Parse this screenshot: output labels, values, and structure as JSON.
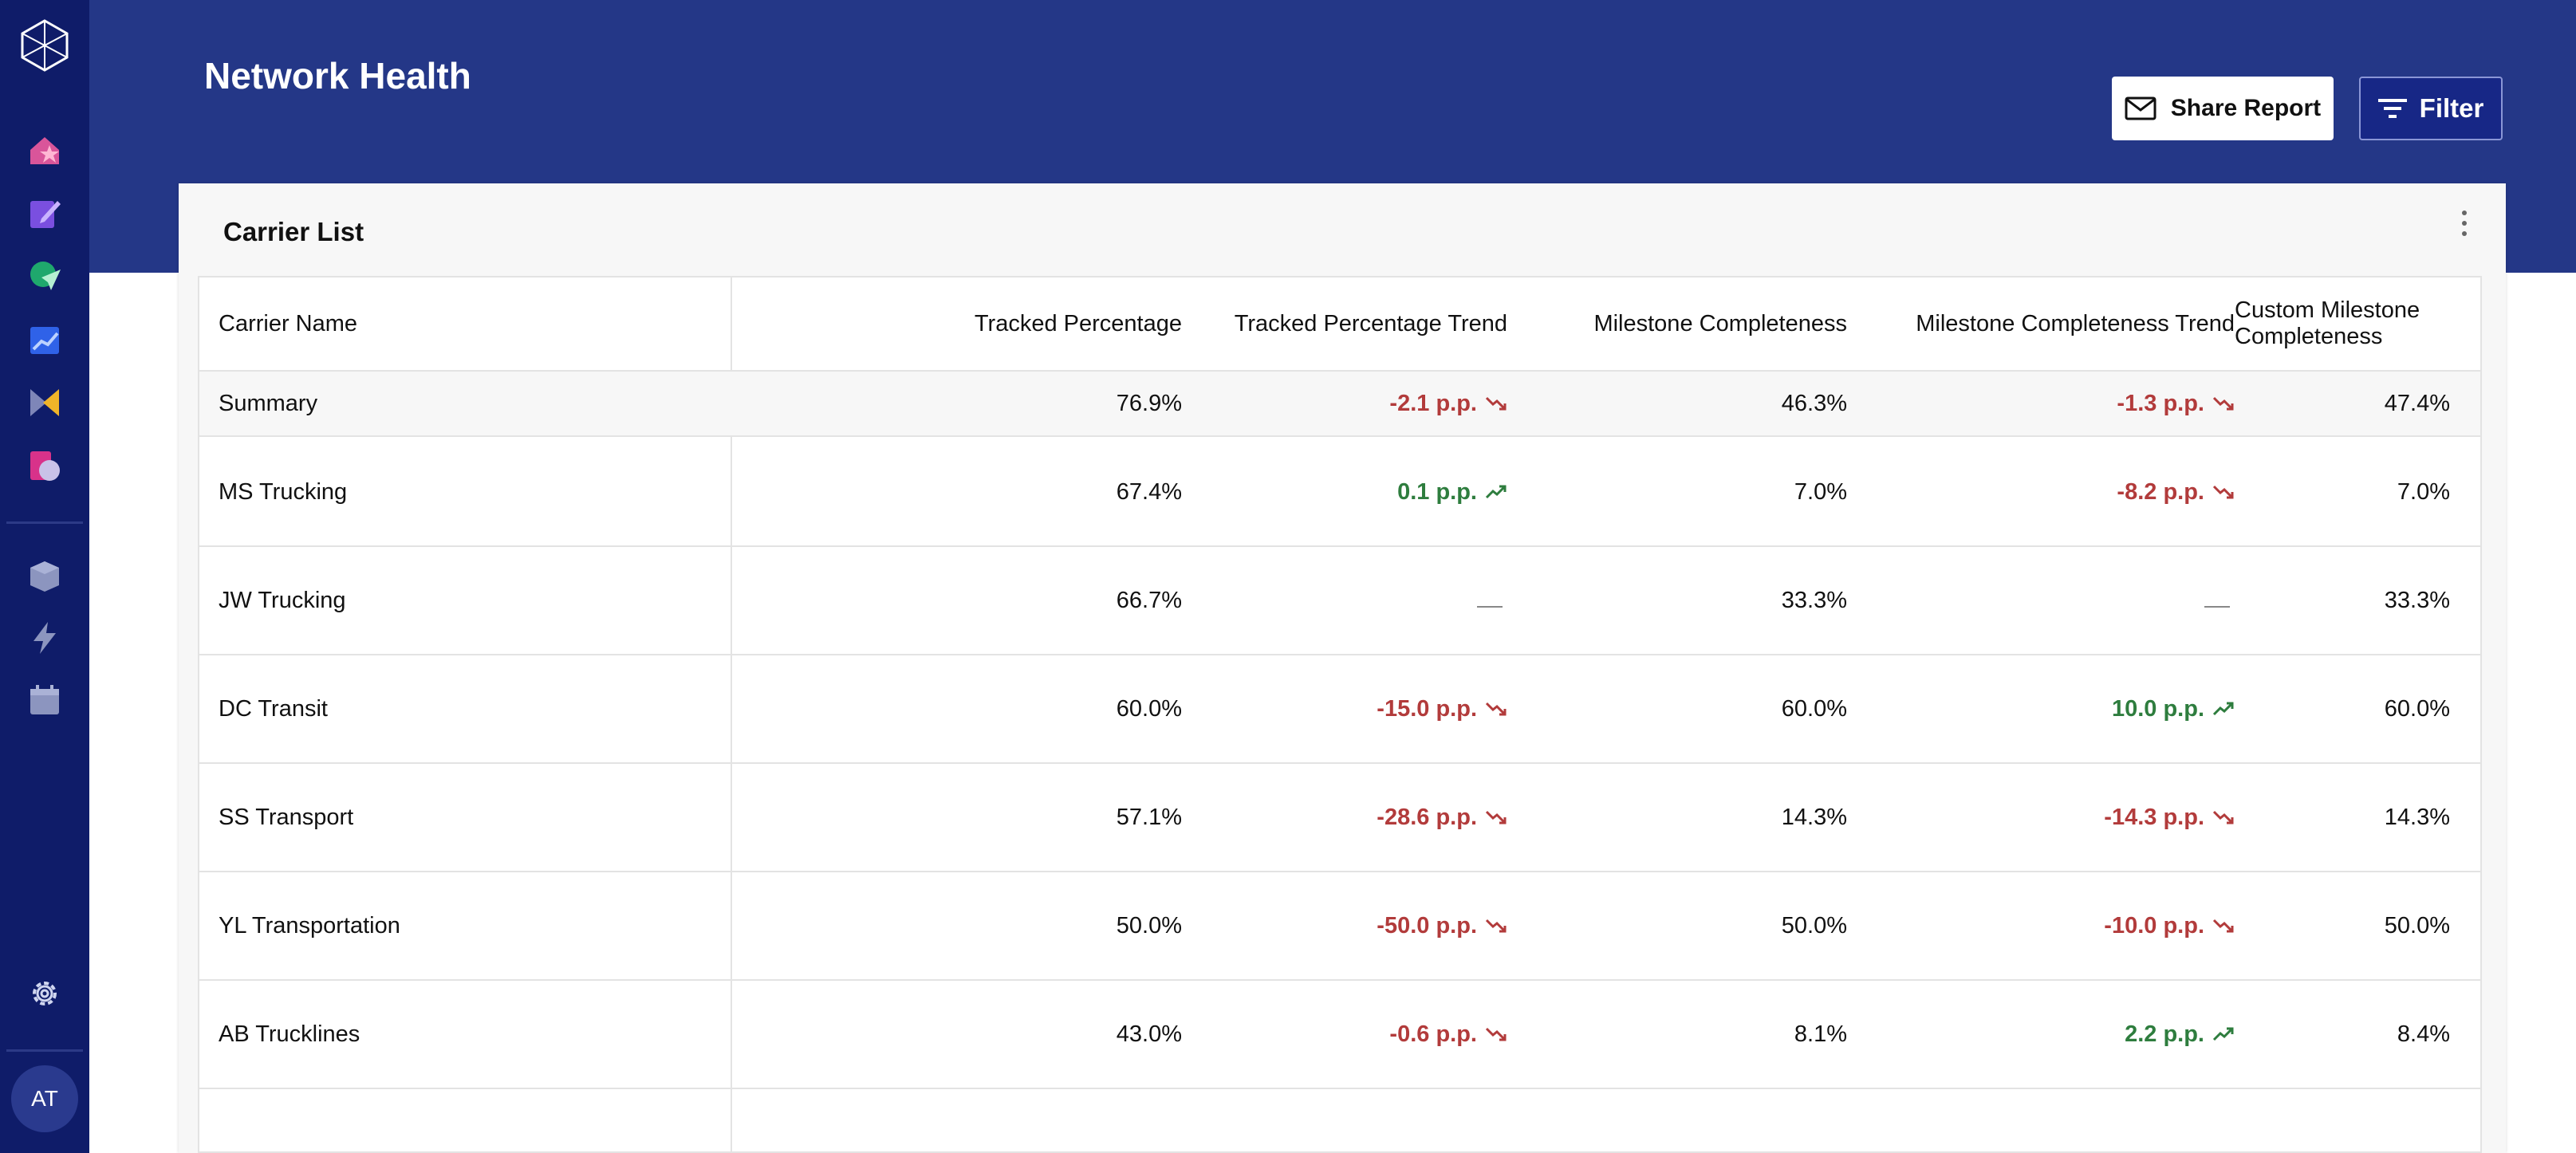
{
  "page": {
    "title": "Network Health"
  },
  "actions": {
    "share_label": "Share Report",
    "filter_label": "Filter"
  },
  "user": {
    "initials": "AT"
  },
  "sidebar": {
    "items": [
      {
        "icon": "home-star-icon",
        "color": "#e0568a"
      },
      {
        "icon": "edit-icon",
        "color": "#8a5cf0"
      },
      {
        "icon": "send-icon",
        "color": "#21b07a"
      },
      {
        "icon": "analytics-icon",
        "color": "#3a6df0"
      },
      {
        "icon": "flag-icon",
        "color": "#f0b429"
      },
      {
        "icon": "report-icon",
        "color": "#e0368a"
      },
      {
        "icon": "box-icon",
        "color": "#9aa3c8"
      },
      {
        "icon": "bolt-icon",
        "color": "#9aa3c8"
      },
      {
        "icon": "calendar-icon",
        "color": "#9aa3c8"
      },
      {
        "icon": "gear-icon",
        "color": "#d0d6f0"
      }
    ]
  },
  "card": {
    "title": "Carrier List",
    "columns": [
      "Carrier Name",
      "Tracked Percentage",
      "Tracked Percentage Trend",
      "Milestone Completeness",
      "Milestone Completeness Trend",
      "Custom Milestone Completeness"
    ],
    "summary": {
      "name": "Summary",
      "tracked": "76.9%",
      "tracked_trend": "-2.1 p.p.",
      "tracked_dir": "down",
      "milestone": "46.3%",
      "milestone_trend": "-1.3 p.p.",
      "milestone_dir": "down",
      "custom": "47.4%"
    },
    "rows": [
      {
        "name": "MS Trucking",
        "tracked": "67.4%",
        "tracked_trend": "0.1 p.p.",
        "tracked_dir": "up",
        "milestone": "7.0%",
        "milestone_trend": "-8.2 p.p.",
        "milestone_dir": "down",
        "custom": "7.0%"
      },
      {
        "name": "JW Trucking",
        "tracked": "66.7%",
        "tracked_trend": "",
        "tracked_dir": "none",
        "milestone": "33.3%",
        "milestone_trend": "",
        "milestone_dir": "none",
        "custom": "33.3%"
      },
      {
        "name": "DC Transit",
        "tracked": "60.0%",
        "tracked_trend": "-15.0 p.p.",
        "tracked_dir": "down",
        "milestone": "60.0%",
        "milestone_trend": "10.0 p.p.",
        "milestone_dir": "up",
        "custom": "60.0%"
      },
      {
        "name": "SS Transport",
        "tracked": "57.1%",
        "tracked_trend": "-28.6 p.p.",
        "tracked_dir": "down",
        "milestone": "14.3%",
        "milestone_trend": "-14.3 p.p.",
        "milestone_dir": "down",
        "custom": "14.3%"
      },
      {
        "name": "YL Transportation",
        "tracked": "50.0%",
        "tracked_trend": "-50.0 p.p.",
        "tracked_dir": "down",
        "milestone": "50.0%",
        "milestone_trend": "-10.0 p.p.",
        "milestone_dir": "down",
        "custom": "50.0%"
      },
      {
        "name": "AB Trucklines",
        "tracked": "43.0%",
        "tracked_trend": "-0.6 p.p.",
        "tracked_dir": "down",
        "milestone": "8.1%",
        "milestone_trend": "2.2 p.p.",
        "milestone_dir": "up",
        "custom": "8.4%"
      }
    ]
  },
  "colors": {
    "header": "#243787",
    "sidebar": "#0f1c69",
    "down": "#b23b3b",
    "up": "#2e7d3e"
  }
}
